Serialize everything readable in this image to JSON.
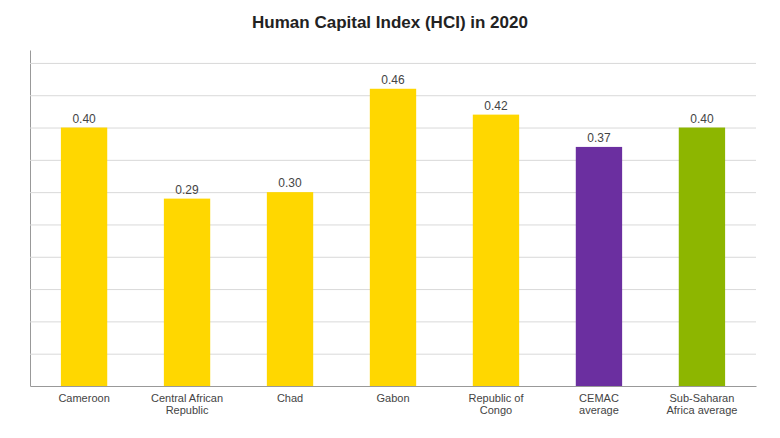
{
  "chart_data": {
    "type": "bar",
    "title": "Human Capital Index (HCI) in 2020",
    "categories": [
      "Cameroon",
      "Central African\nRepublic",
      "Chad",
      "Gabon",
      "Republic of\nCongo",
      "CEMAC\naverage",
      "Sub-Saharan\nAfrica average"
    ],
    "values": [
      0.4,
      0.29,
      0.3,
      0.46,
      0.42,
      0.37,
      0.4
    ],
    "value_labels": [
      "0.40",
      "0.29",
      "0.30",
      "0.46",
      "0.42",
      "0.37",
      "0.40"
    ],
    "colors": [
      "#FFD700",
      "#FFD700",
      "#FFD700",
      "#FFD700",
      "#FFD700",
      "#6B2FA0",
      "#8DB600"
    ],
    "ylim": [
      0,
      0.52
    ],
    "yticks": [
      0.0,
      0.05,
      0.1,
      0.15,
      0.2,
      0.25,
      0.3,
      0.35,
      0.4,
      0.45,
      0.5
    ],
    "grid": true,
    "data_labels": true,
    "tick_labels": "x"
  }
}
